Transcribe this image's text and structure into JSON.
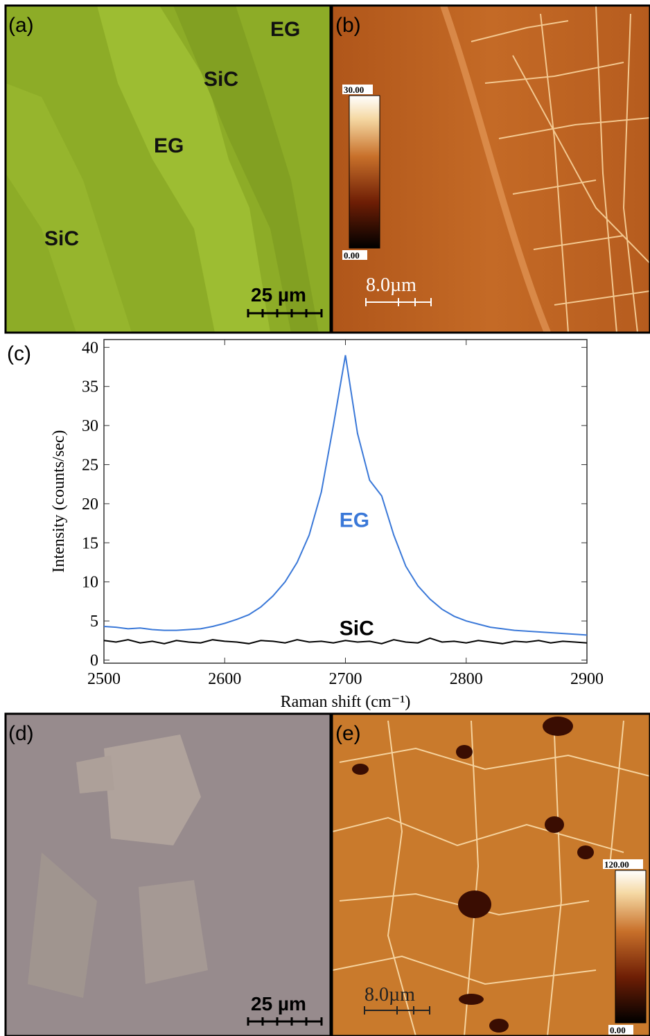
{
  "panels": {
    "a": {
      "label": "(a)",
      "annotations": [
        "EG",
        "SiC",
        "EG",
        "SiC"
      ],
      "scale_bar": "25 µm"
    },
    "b": {
      "label": "(b)",
      "colorbar": [
        "30.00",
        "0.00"
      ],
      "scale_bar": "8.0µm"
    },
    "c": {
      "label": "(c)"
    },
    "d": {
      "label": "(d)",
      "scale_bar": "25 µm"
    },
    "e": {
      "label": "(e)",
      "colorbar": [
        "120.00",
        "0.00"
      ],
      "scale_bar": "8.0µm"
    }
  },
  "chart_data": {
    "type": "line",
    "x_label": "Raman shift (cm⁻¹)",
    "y_label": "Intensity (counts/sec)",
    "x": [
      2500,
      2510,
      2520,
      2530,
      2540,
      2550,
      2560,
      2570,
      2580,
      2590,
      2600,
      2610,
      2620,
      2630,
      2640,
      2650,
      2660,
      2670,
      2680,
      2690,
      2700,
      2710,
      2720,
      2730,
      2740,
      2750,
      2760,
      2770,
      2780,
      2790,
      2800,
      2810,
      2820,
      2830,
      2840,
      2850,
      2860,
      2870,
      2880,
      2890,
      2900
    ],
    "series": [
      {
        "name": "EG",
        "color": "#3a78d8",
        "values": [
          4.3,
          4.2,
          4.0,
          4.1,
          3.9,
          3.8,
          3.8,
          3.9,
          4.0,
          4.3,
          4.7,
          5.2,
          5.8,
          6.8,
          8.2,
          10.0,
          12.5,
          16.0,
          21.5,
          30.0,
          39.0,
          29.0,
          23.0,
          21.0,
          16.0,
          12.0,
          9.5,
          7.8,
          6.5,
          5.6,
          5.0,
          4.6,
          4.2,
          4.0,
          3.8,
          3.7,
          3.6,
          3.5,
          3.4,
          3.3,
          3.2
        ]
      },
      {
        "name": "SiC",
        "color": "#000000",
        "values": [
          2.5,
          2.3,
          2.6,
          2.2,
          2.4,
          2.1,
          2.5,
          2.3,
          2.2,
          2.6,
          2.4,
          2.3,
          2.1,
          2.5,
          2.4,
          2.2,
          2.6,
          2.3,
          2.4,
          2.2,
          2.5,
          2.3,
          2.4,
          2.1,
          2.6,
          2.3,
          2.2,
          2.8,
          2.3,
          2.4,
          2.2,
          2.5,
          2.3,
          2.1,
          2.4,
          2.3,
          2.5,
          2.2,
          2.4,
          2.3,
          2.2
        ]
      }
    ],
    "xlim": [
      2500,
      2900
    ],
    "ylim": [
      -0.4,
      41
    ],
    "xticks": [
      2500,
      2600,
      2700,
      2800,
      2900
    ],
    "yticks": [
      0,
      5,
      10,
      15,
      20,
      25,
      30,
      35,
      40
    ]
  }
}
